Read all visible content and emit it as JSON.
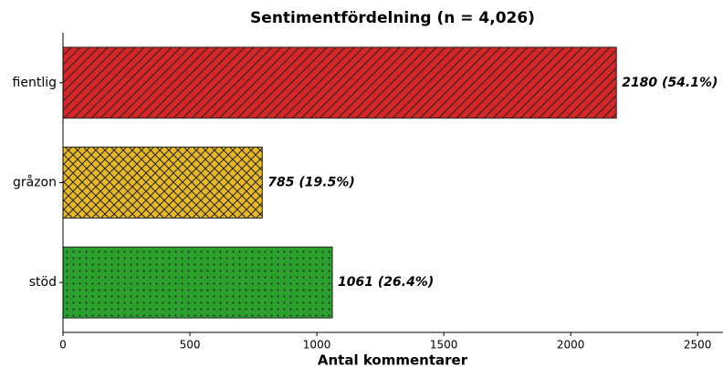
{
  "chart_data": {
    "type": "hbar",
    "title": "Sentimentfördelning (n = 4,026)",
    "categories": [
      "fientlig",
      "gråzon",
      "stöd"
    ],
    "values": [
      2180,
      785,
      1061
    ],
    "value_labels": [
      "2180 (54.1%)",
      "785 (19.5%)",
      "1061 (26.4%)"
    ],
    "colors": [
      "#d62728",
      "#e8b923",
      "#2ca02c"
    ],
    "hatches": [
      "/",
      "x",
      "."
    ],
    "xlabel": "Antal kommentarer",
    "xlim": [
      0,
      2600
    ],
    "xticks": [
      0,
      500,
      1000,
      1500,
      2000,
      2500
    ]
  }
}
